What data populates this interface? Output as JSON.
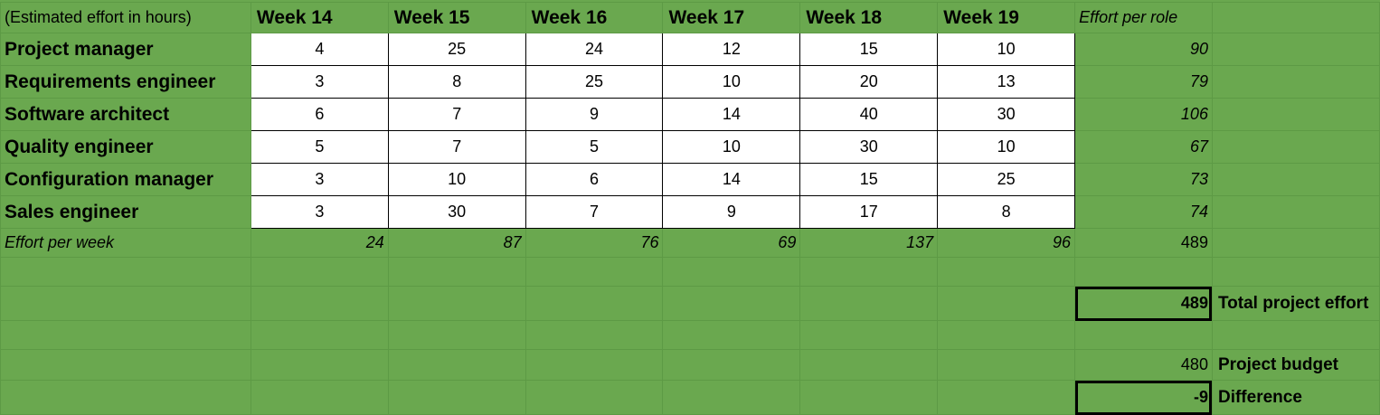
{
  "header": {
    "note": "(Estimated effort in hours)",
    "weeks": [
      "Week 14",
      "Week 15",
      "Week 16",
      "Week 17",
      "Week 18",
      "Week 19"
    ],
    "role_total_label": "Effort per role"
  },
  "rows": [
    {
      "role": "Project manager",
      "values": [
        "4",
        "25",
        "24",
        "12",
        "15",
        "10"
      ],
      "total": "90"
    },
    {
      "role": "Requirements engineer",
      "values": [
        "3",
        "8",
        "25",
        "10",
        "20",
        "13"
      ],
      "total": "79"
    },
    {
      "role": "Software architect",
      "values": [
        "6",
        "7",
        "9",
        "14",
        "40",
        "30"
      ],
      "total": "106"
    },
    {
      "role": "Quality engineer",
      "values": [
        "5",
        "7",
        "5",
        "10",
        "30",
        "10"
      ],
      "total": "67"
    },
    {
      "role": "Configuration manager",
      "values": [
        "3",
        "10",
        "6",
        "14",
        "15",
        "25"
      ],
      "total": "73"
    },
    {
      "role": "Sales engineer",
      "values": [
        "3",
        "30",
        "7",
        "9",
        "17",
        "8"
      ],
      "total": "74"
    }
  ],
  "week_totals": {
    "label": "Effort per week",
    "values": [
      "24",
      "87",
      "76",
      "69",
      "137",
      "96"
    ],
    "grand_total": "489"
  },
  "summary": {
    "total_effort_value": "489",
    "total_effort_label": "Total project effort",
    "budget_value": "480",
    "budget_label": "Project budget",
    "difference_value": "-9",
    "difference_label": "Difference"
  },
  "colors": {
    "sheet_background": "#6aa84f",
    "grid_line": "#5d9a45",
    "cell_background": "#ffffff"
  }
}
